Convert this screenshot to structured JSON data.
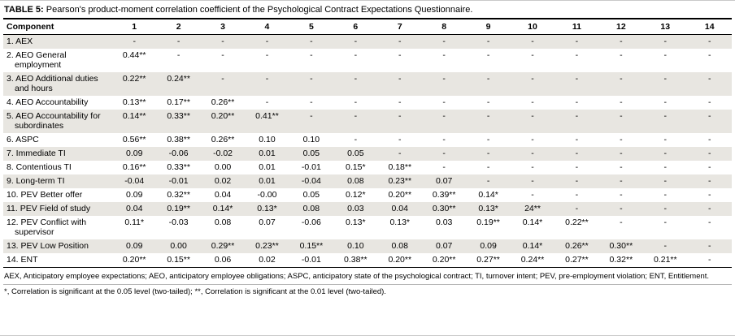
{
  "table": {
    "label": "TABLE 5:",
    "title": "Pearson's product-moment correlation coefficient of the Psychological Contract Expectations Questionnaire.",
    "columns": [
      "Component",
      "1",
      "2",
      "3",
      "4",
      "5",
      "6",
      "7",
      "8",
      "9",
      "10",
      "11",
      "12",
      "13",
      "14"
    ],
    "rows": [
      {
        "component": "1. AEX",
        "values": [
          "-",
          "-",
          "-",
          "-",
          "-",
          "-",
          "-",
          "-",
          "-",
          "-",
          "-",
          "-",
          "-",
          "-"
        ]
      },
      {
        "component": "2. AEO General employment",
        "values": [
          "0.44**",
          "-",
          "-",
          "-",
          "-",
          "-",
          "-",
          "-",
          "-",
          "-",
          "-",
          "-",
          "-",
          "-"
        ]
      },
      {
        "component": "3. AEO Additional duties and hours",
        "values": [
          "0.22**",
          "0.24**",
          "-",
          "-",
          "-",
          "-",
          "-",
          "-",
          "-",
          "-",
          "-",
          "-",
          "-",
          "-"
        ]
      },
      {
        "component": "4. AEO Accountability",
        "values": [
          "0.13**",
          "0.17**",
          "0.26**",
          "-",
          "-",
          "-",
          "-",
          "-",
          "-",
          "-",
          "-",
          "-",
          "-",
          "-"
        ]
      },
      {
        "component": "5. AEO Accountability for subordinates",
        "values": [
          "0.14**",
          "0.33**",
          "0.20**",
          "0.41**",
          "-",
          "-",
          "-",
          "-",
          "-",
          "-",
          "-",
          "-",
          "-",
          "-"
        ]
      },
      {
        "component": "6. ASPC",
        "values": [
          "0.56**",
          "0.38**",
          "0.26**",
          "0.10",
          "0.10",
          "-",
          "-",
          "-",
          "-",
          "-",
          "-",
          "-",
          "-",
          "-"
        ]
      },
      {
        "component": "7. Immediate TI",
        "values": [
          "0.09",
          "-0.06",
          "-0.02",
          "0.01",
          "0.05",
          "0.05",
          "-",
          "-",
          "-",
          "-",
          "-",
          "-",
          "-",
          "-"
        ]
      },
      {
        "component": "8. Contentious TI",
        "values": [
          "0.16**",
          "0.33**",
          "0.00",
          "0.01",
          "-0.01",
          "0.15*",
          "0.18**",
          "-",
          "-",
          "-",
          "-",
          "-",
          "-",
          "-"
        ]
      },
      {
        "component": "9. Long-term TI",
        "values": [
          "-0.04",
          "-0.01",
          "0.02",
          "0.01",
          "-0.04",
          "0.08",
          "0.23**",
          "0.07",
          "-",
          "-",
          "-",
          "-",
          "-",
          "-"
        ]
      },
      {
        "component": "10. PEV Better offer",
        "values": [
          "0.09",
          "0.32**",
          "0.04",
          "-0.00",
          "0.05",
          "0.12*",
          "0.20**",
          "0.39**",
          "0.14*",
          "-",
          "-",
          "-",
          "-",
          "-"
        ]
      },
      {
        "component": "11. PEV Field of study",
        "values": [
          "0.04",
          "0.19**",
          "0.14*",
          "0.13*",
          "0.08",
          "0.03",
          "0.04",
          "0.30**",
          "0.13*",
          "24**",
          "-",
          "-",
          "-",
          "-"
        ]
      },
      {
        "component": "12. PEV Conflict with supervisor",
        "values": [
          "0.11*",
          "-0.03",
          "0.08",
          "0.07",
          "-0.06",
          "0.13*",
          "0.13*",
          "0.03",
          "0.19**",
          "0.14*",
          "0.22**",
          "-",
          "-",
          "-"
        ]
      },
      {
        "component": "13. PEV Low Position",
        "values": [
          "0.09",
          "0.00",
          "0.29**",
          "0.23**",
          "0.15**",
          "0.10",
          "0.08",
          "0.07",
          "0.09",
          "0.14*",
          "0.26**",
          "0.30**",
          "-",
          "-"
        ]
      },
      {
        "component": "14. ENT",
        "values": [
          "0.20**",
          "0.15**",
          "0.06",
          "0.02",
          "-0.01",
          "0.38**",
          "0.20**",
          "0.20**",
          "0.27**",
          "0.24**",
          "0.27**",
          "0.32**",
          "0.21**",
          "-"
        ]
      }
    ],
    "footnotes": [
      "AEX, Anticipatory employee expectations; AEO, anticipatory employee obligations; ASPC, anticipatory state of the psychological contract; TI, turnover intent; PEV, pre-employment violation; ENT, Entitlement.",
      "*, Correlation is significant at the 0.05 level (two-tailed); **, Correlation is significant at the 0.01 level (two-tailed)."
    ]
  }
}
